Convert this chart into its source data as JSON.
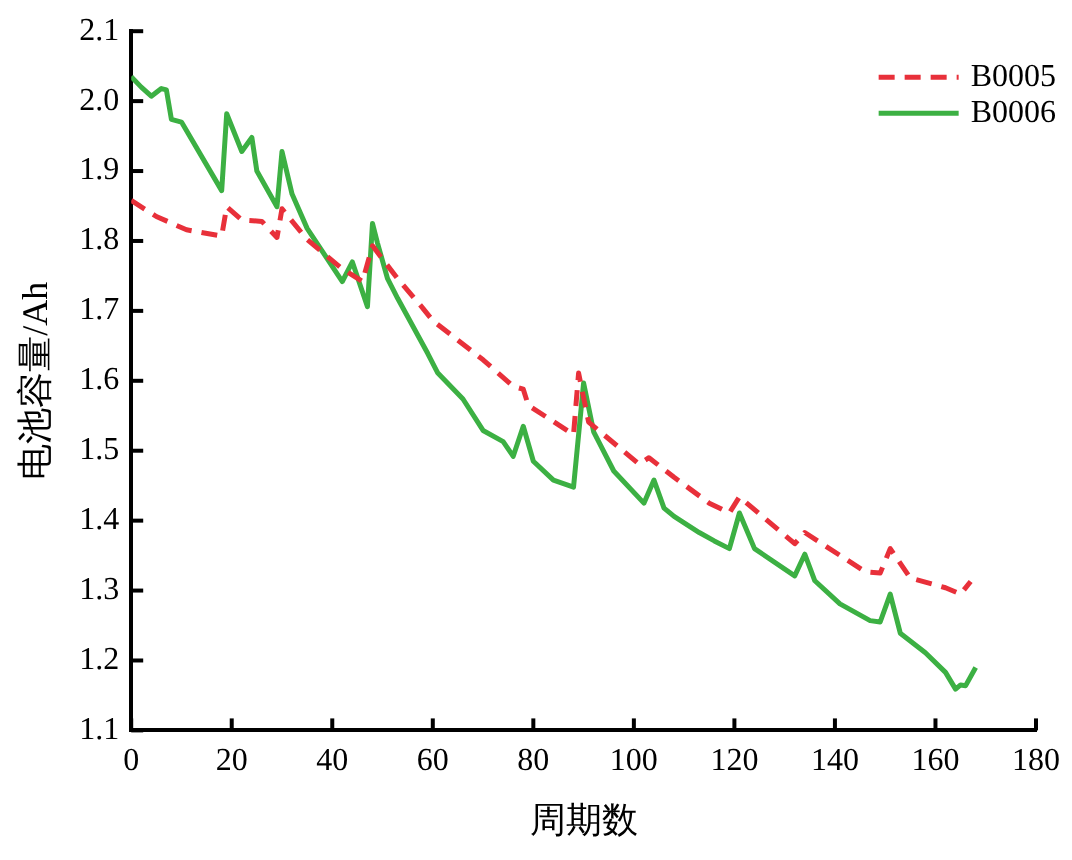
{
  "chart_data": {
    "type": "line",
    "xlabel": "周期数",
    "ylabel": "电池容量/Ah",
    "xlim": [
      0,
      180
    ],
    "xticks": [
      0,
      20,
      40,
      60,
      80,
      100,
      120,
      140,
      160,
      180
    ],
    "ylim": [
      1.1,
      2.1
    ],
    "yticks": [
      1.1,
      1.2,
      1.3,
      1.4,
      1.5,
      1.6,
      1.7,
      1.8,
      1.9,
      {
        "value": 2.0,
        "label": "2.0"
      },
      2.1
    ],
    "grid": false,
    "legend": "top right",
    "marker": "none",
    "series": [
      {
        "name": "B0005",
        "color": "#e8303a",
        "line_style": "dashed",
        "x": [
          0,
          5,
          11,
          18,
          19,
          22,
          26,
          29,
          30,
          35,
          42,
          46,
          48,
          53,
          58,
          60,
          70,
          76,
          78,
          79,
          88,
          89,
          91,
          101,
          103,
          108,
          115,
          119,
          121,
          132,
          134,
          146,
          149,
          151,
          155,
          162,
          165,
          167
        ],
        "values": [
          1.858,
          1.835,
          1.816,
          1.807,
          1.849,
          1.83,
          1.828,
          1.805,
          1.846,
          1.802,
          1.76,
          1.742,
          1.793,
          1.746,
          1.704,
          1.686,
          1.63,
          1.592,
          1.588,
          1.565,
          1.523,
          1.611,
          1.541,
          1.481,
          1.49,
          1.462,
          1.425,
          1.411,
          1.434,
          1.367,
          1.383,
          1.327,
          1.325,
          1.36,
          1.318,
          1.304,
          1.295,
          1.313
        ]
      },
      {
        "name": "B0006",
        "color": "#3cb043",
        "line_style": "solid",
        "x": [
          0,
          2,
          4,
          6,
          7,
          8,
          10,
          18,
          19,
          22,
          24,
          25,
          29,
          30,
          32,
          35,
          42,
          44,
          47,
          48,
          49,
          51,
          53,
          59,
          61,
          66,
          70,
          74,
          76,
          78,
          80,
          84,
          88,
          90,
          92,
          96,
          102,
          104,
          106,
          108,
          113,
          116,
          119,
          121,
          124,
          132,
          134,
          136,
          141,
          147,
          149,
          151,
          153,
          158,
          162,
          164,
          165,
          166,
          168
        ],
        "values": [
          2.035,
          2.02,
          2.007,
          2.018,
          2.016,
          1.974,
          1.97,
          1.872,
          1.982,
          1.928,
          1.948,
          1.9,
          1.849,
          1.928,
          1.867,
          1.818,
          1.742,
          1.77,
          1.706,
          1.825,
          1.797,
          1.746,
          1.718,
          1.639,
          1.611,
          1.574,
          1.529,
          1.513,
          1.492,
          1.535,
          1.485,
          1.458,
          1.448,
          1.597,
          1.527,
          1.471,
          1.425,
          1.458,
          1.418,
          1.406,
          1.383,
          1.371,
          1.36,
          1.411,
          1.36,
          1.321,
          1.352,
          1.314,
          1.281,
          1.257,
          1.255,
          1.295,
          1.239,
          1.211,
          1.183,
          1.159,
          1.165,
          1.164,
          1.19
        ]
      }
    ]
  }
}
